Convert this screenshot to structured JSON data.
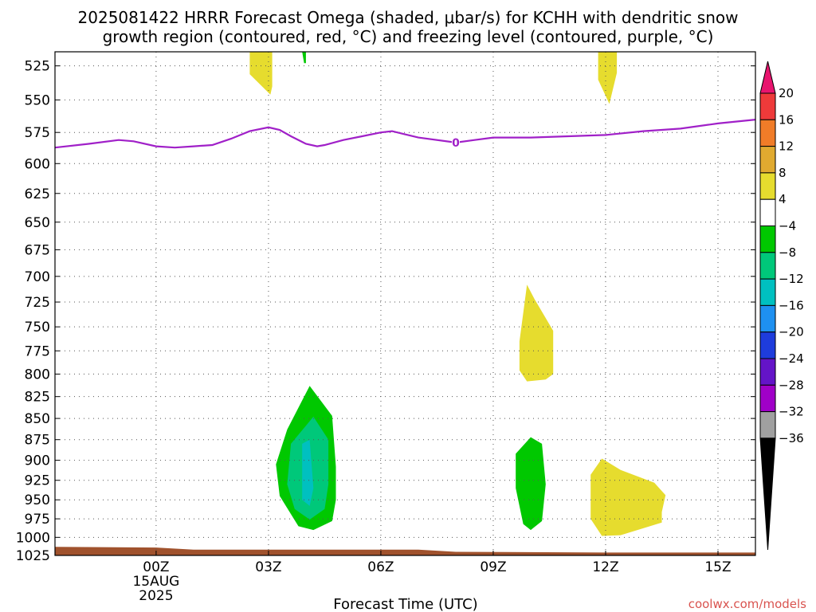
{
  "title_line1": "2025081422 HRRR Forecast Omega (shaded, μbar/s) for KCHH with dendritic snow",
  "title_line2": "growth region (contoured, red, °C) and freezing level (contoured, purple, °C)",
  "credit": "coolwx.com/models",
  "chart_data": {
    "type": "heatmap",
    "title": "2025081422 HRRR Forecast Omega (shaded, μbar/s) for KCHH with dendritic snow growth region (contoured, red, °C) and freezing level (contoured, purple, °C)",
    "xlabel": "Forecast Time (UTC)",
    "ylabel": "",
    "xlim_hours": [
      -2.7,
      16.0
    ],
    "ylim_hpa": [
      1025,
      515
    ],
    "y_scale": "log-pressure (inverted)",
    "grid": true,
    "x_ticks": [
      {
        "hour": 0,
        "label": "00Z",
        "sub1": "15AUG",
        "sub2": "2025"
      },
      {
        "hour": 3,
        "label": "03Z",
        "sub1": "",
        "sub2": ""
      },
      {
        "hour": 6,
        "label": "06Z",
        "sub1": "",
        "sub2": ""
      },
      {
        "hour": 9,
        "label": "09Z",
        "sub1": "",
        "sub2": ""
      },
      {
        "hour": 12,
        "label": "12Z",
        "sub1": "",
        "sub2": ""
      },
      {
        "hour": 15,
        "label": "15Z",
        "sub1": "",
        "sub2": ""
      }
    ],
    "y_ticks": [
      525,
      550,
      575,
      600,
      625,
      650,
      675,
      700,
      725,
      750,
      775,
      800,
      825,
      850,
      875,
      900,
      925,
      950,
      975,
      1000,
      1025
    ],
    "colorbar": {
      "labels": [
        "20",
        "16",
        "12",
        "8",
        "4",
        "−4",
        "−8",
        "−12",
        "−16",
        "−20",
        "−24",
        "−28",
        "−32",
        "−36"
      ],
      "colors": [
        "#e8146e",
        "#ee3a3a",
        "#f07c28",
        "#e0aa30",
        "#e6dc2e",
        "#ffffff",
        "#00c800",
        "#00c87a",
        "#00c0c0",
        "#1e90f0",
        "#1e3cdc",
        "#6414c8",
        "#a000c8",
        "#a0a0a0",
        "#000000"
      ],
      "top_color": "#e8146e",
      "bottom_color": "#000000"
    },
    "freezing_level": {
      "label": "0",
      "color": "#a020c8",
      "points": [
        [
          -2.7,
          587
        ],
        [
          -1.8,
          584
        ],
        [
          -1.0,
          581
        ],
        [
          -0.6,
          582
        ],
        [
          0,
          586
        ],
        [
          0.5,
          587
        ],
        [
          1,
          586
        ],
        [
          1.5,
          585
        ],
        [
          2,
          580
        ],
        [
          2.5,
          574
        ],
        [
          3,
          571
        ],
        [
          3.3,
          573
        ],
        [
          3.6,
          578
        ],
        [
          4,
          584
        ],
        [
          4.3,
          586
        ],
        [
          4.5,
          585
        ],
        [
          5,
          581
        ],
        [
          5.5,
          578
        ],
        [
          6,
          575
        ],
        [
          6.3,
          574
        ],
        [
          7,
          579
        ],
        [
          8,
          583
        ],
        [
          8.5,
          581
        ],
        [
          9,
          579
        ],
        [
          10,
          579
        ],
        [
          11,
          578
        ],
        [
          12,
          577
        ],
        [
          13,
          574
        ],
        [
          14,
          572
        ],
        [
          15,
          568
        ],
        [
          16,
          565
        ]
      ]
    },
    "omega_regions": [
      {
        "level": "4 to 8 (ascent-weak, yellow)",
        "color": "#e6dc2e",
        "outline": [
          [
            2.5,
            515
          ],
          [
            3.1,
            515
          ],
          [
            3.1,
            540
          ],
          [
            3.05,
            546
          ],
          [
            2.5,
            531
          ]
        ]
      },
      {
        "level": "4 to 8 (ascent-weak, yellow)",
        "color": "#e6dc2e",
        "outline": [
          [
            11.8,
            515
          ],
          [
            12.3,
            515
          ],
          [
            12.3,
            530
          ],
          [
            12.1,
            553
          ],
          [
            11.8,
            535
          ]
        ]
      },
      {
        "level": "-4 to -8 (green)",
        "color": "#00c800",
        "outline": [
          [
            3.9,
            515
          ],
          [
            4.0,
            515
          ],
          [
            4.0,
            523
          ],
          [
            3.95,
            523
          ]
        ]
      },
      {
        "level": "4 to 8 (yellow)",
        "color": "#e6dc2e",
        "outline": [
          [
            9.7,
            765
          ],
          [
            9.9,
            708
          ],
          [
            10.1,
            722
          ],
          [
            10.6,
            754
          ],
          [
            10.6,
            800
          ],
          [
            10.4,
            806
          ],
          [
            9.9,
            808
          ],
          [
            9.7,
            796
          ]
        ]
      },
      {
        "level": "-4 to -8 (green)",
        "color": "#00c800",
        "outline": [
          [
            3.5,
            863
          ],
          [
            4.1,
            813
          ],
          [
            4.7,
            847
          ],
          [
            4.8,
            908
          ],
          [
            4.8,
            950
          ],
          [
            4.7,
            978
          ],
          [
            4.2,
            990
          ],
          [
            3.8,
            985
          ],
          [
            3.3,
            945
          ],
          [
            3.2,
            905
          ]
        ]
      },
      {
        "level": "-8 to -12 (teal)",
        "color": "#00c87a",
        "outline": [
          [
            3.6,
            880
          ],
          [
            4.2,
            848
          ],
          [
            4.6,
            875
          ],
          [
            4.6,
            930
          ],
          [
            4.5,
            962
          ],
          [
            4.1,
            976
          ],
          [
            3.7,
            962
          ],
          [
            3.5,
            930
          ]
        ]
      },
      {
        "level": "-12 to -16 (cyan)",
        "color": "#00c0c0",
        "outline": [
          [
            3.9,
            880
          ],
          [
            4.1,
            875
          ],
          [
            4.2,
            935
          ],
          [
            4.1,
            958
          ],
          [
            3.9,
            950
          ]
        ]
      },
      {
        "level": "-4 to -8 (green)",
        "color": "#00c800",
        "outline": [
          [
            9.6,
            892
          ],
          [
            10.0,
            872
          ],
          [
            10.3,
            880
          ],
          [
            10.4,
            930
          ],
          [
            10.3,
            978
          ],
          [
            10.0,
            990
          ],
          [
            9.8,
            982
          ],
          [
            9.6,
            935
          ]
        ]
      },
      {
        "level": "4 to 8 (yellow)",
        "color": "#e6dc2e",
        "outline": [
          [
            11.6,
            918
          ],
          [
            11.9,
            898
          ],
          [
            12.4,
            912
          ],
          [
            13.3,
            928
          ],
          [
            13.6,
            944
          ],
          [
            13.5,
            966
          ],
          [
            13.5,
            980
          ],
          [
            12.4,
            997
          ],
          [
            11.9,
            998
          ],
          [
            11.6,
            975
          ]
        ]
      }
    ],
    "terrain": {
      "color": "#a0522d",
      "points": [
        [
          -2.7,
          1013
        ],
        [
          0,
          1014
        ],
        [
          1,
          1017
        ],
        [
          7,
          1017
        ],
        [
          8,
          1020
        ],
        [
          12,
          1021
        ],
        [
          14,
          1021
        ],
        [
          16,
          1021
        ]
      ]
    }
  }
}
